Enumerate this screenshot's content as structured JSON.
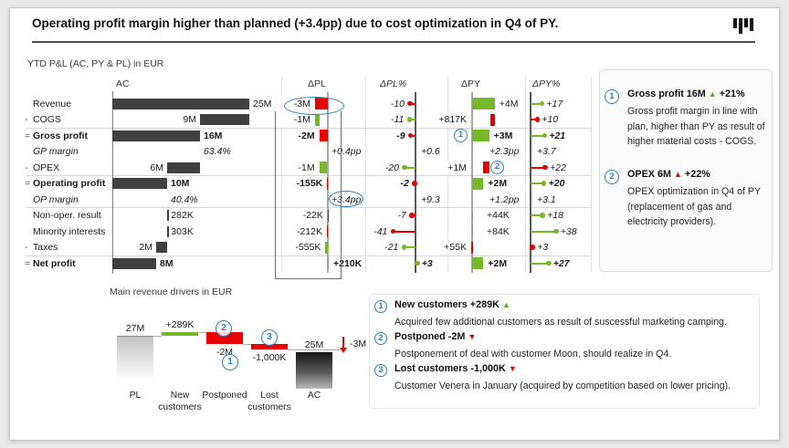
{
  "page": {
    "title": "Operating profit margin higher than planned (+3.4pp) due to cost optimization in Q4 of PY.",
    "logo": "bar-chart-logo"
  },
  "colors": {
    "positive": "#76b82a",
    "negative": "#e60000",
    "bar_neutral": "#404040",
    "accent_blue": "#2f7fc1"
  },
  "chart_data": [
    {
      "type": "table",
      "title": "YTD P&L (AC, PY & PL) in EUR",
      "columns": [
        "AC",
        "ΔPL",
        "ΔPL%",
        "ΔPY",
        "ΔPY%"
      ],
      "rows": [
        {
          "label": "Revenue",
          "prefix": "",
          "bold": false,
          "italic": false,
          "ac": {
            "text": "25M",
            "range": [
              0,
              25
            ],
            "side": "right"
          },
          "dpl": {
            "text": "-3M",
            "range": [
              -3,
              0
            ],
            "good": false
          },
          "dplp": {
            "text": "-10",
            "v": -10,
            "good": false
          },
          "dpy": {
            "text": "+4M",
            "range": [
              0,
              4
            ],
            "good": true
          },
          "dpyp": {
            "text": "+17",
            "v": 17,
            "good": true
          }
        },
        {
          "label": "COGS",
          "prefix": "-",
          "bold": false,
          "italic": false,
          "ac": {
            "text": "9M",
            "range": [
              16,
              25
            ],
            "side": "left"
          },
          "dpl": {
            "text": "-1M",
            "range": [
              -3,
              -2
            ],
            "good": true
          },
          "dplp": {
            "text": "-11",
            "v": -11,
            "good": true
          },
          "dpy": {
            "text": "+817K",
            "range": [
              3.18,
              4
            ],
            "good": false,
            "label": "left"
          },
          "dpyp": {
            "text": "+10",
            "v": 10,
            "good": false
          }
        },
        {
          "label": "Gross profit",
          "prefix": "=",
          "bold": true,
          "italic": false,
          "ac": {
            "text": "16M",
            "range": [
              0,
              16
            ],
            "side": "right"
          },
          "dpl": {
            "text": "-2M",
            "range": [
              -2,
              0
            ],
            "good": false
          },
          "dplp": {
            "text": "-9",
            "v": -9,
            "good": false
          },
          "dpy": {
            "text": "+3M",
            "range": [
              0,
              3
            ],
            "good": true,
            "callout": "1",
            "callout_side": "left"
          },
          "dpyp": {
            "text": "+21",
            "v": 21,
            "good": true
          }
        },
        {
          "label": "GP margin",
          "prefix": "",
          "bold": false,
          "italic": true,
          "ac": {
            "text": "63.4%",
            "align_to_m": 16
          },
          "dpl": {
            "text": "+0.4pp",
            "margin": true
          },
          "dplp": {
            "text": "+0.6",
            "margin": true
          },
          "dpy": {
            "text": "+2.3pp",
            "margin": true
          },
          "dpyp": {
            "text": "+3.7",
            "margin": true
          }
        },
        {
          "label": "OPEX",
          "prefix": "-",
          "bold": false,
          "italic": false,
          "ac": {
            "text": "6M",
            "range": [
              10,
              16
            ],
            "side": "left"
          },
          "dpl": {
            "text": "-1M",
            "range": [
              -2,
              -0.155
            ],
            "good": true
          },
          "dplp": {
            "text": "-20",
            "v": -20,
            "good": true
          },
          "dpy": {
            "text": "+1M",
            "range": [
              2,
              3
            ],
            "good": false,
            "label": "left",
            "callout": "2",
            "callout_side": "right"
          },
          "dpyp": {
            "text": "+22",
            "v": 22,
            "good": false
          }
        },
        {
          "label": "Operating profit",
          "prefix": "=",
          "bold": true,
          "italic": false,
          "ac": {
            "text": "10M",
            "range": [
              0,
              10
            ],
            "side": "right"
          },
          "dpl": {
            "text": "-155K",
            "range": [
              -0.155,
              0
            ],
            "good": false
          },
          "dplp": {
            "text": "-2",
            "v": -2,
            "good": false
          },
          "dpy": {
            "text": "+2M",
            "range": [
              0,
              2
            ],
            "good": true
          },
          "dpyp": {
            "text": "+20",
            "v": 20,
            "good": true
          }
        },
        {
          "label": "OP margin",
          "prefix": "",
          "bold": false,
          "italic": true,
          "ac": {
            "text": "40.4%",
            "align_to_m": 10
          },
          "dpl": {
            "text": "+3.4pp",
            "margin": true,
            "highlighted": true
          },
          "dplp": {
            "text": "+9.3",
            "margin": true
          },
          "dpy": {
            "text": "+1.2pp",
            "margin": true
          },
          "dpyp": {
            "text": "+3.1",
            "margin": true
          }
        },
        {
          "label": "Non-oper. result",
          "prefix": "",
          "bold": false,
          "italic": false,
          "ac": {
            "text": "282K",
            "range": [
              10,
              10.05
            ],
            "side": "right"
          },
          "dpl": {
            "text": "-22K",
            "range": [
              -0.022,
              0
            ],
            "good": false
          },
          "dplp": {
            "text": "-7",
            "v": -7,
            "good": false
          },
          "dpy": {
            "text": "+44K",
            "range": [
              0,
              0.07
            ],
            "good": true
          },
          "dpyp": {
            "text": "+18",
            "v": 18,
            "good": true
          }
        },
        {
          "label": "Minority interests",
          "prefix": "",
          "bold": false,
          "italic": false,
          "ac": {
            "text": "303K",
            "range": [
              10,
              10.05
            ],
            "side": "right"
          },
          "dpl": {
            "text": "-212K",
            "range": [
              -0.212,
              0
            ],
            "good": false
          },
          "dplp": {
            "text": "-41",
            "v": -41,
            "good": false
          },
          "dpy": {
            "text": "+84K",
            "range": [
              0,
              0.13
            ],
            "good": true
          },
          "dpyp": {
            "text": "+38",
            "v": 38,
            "good": true
          }
        },
        {
          "label": "Taxes",
          "prefix": "-",
          "bold": false,
          "italic": false,
          "ac": {
            "text": "2M",
            "range": [
              8,
              10
            ],
            "side": "left"
          },
          "dpl": {
            "text": "-555K",
            "range": [
              -0.555,
              0
            ],
            "good": true
          },
          "dplp": {
            "text": "-21",
            "v": -21,
            "good": true
          },
          "dpy": {
            "text": "+55K",
            "range": [
              -0.09,
              0
            ],
            "good": false,
            "label": "left"
          },
          "dpyp": {
            "text": "+3",
            "v": 3,
            "good": false
          }
        },
        {
          "label": "Net profit",
          "prefix": "=",
          "bold": true,
          "italic": false,
          "ac": {
            "text": "8M",
            "range": [
              0,
              8
            ],
            "side": "right"
          },
          "dpl": {
            "text": "+210K",
            "range": [
              0,
              0.21
            ],
            "good": true
          },
          "dplp": {
            "text": "+3",
            "v": 3,
            "good": true
          },
          "dpy": {
            "text": "+2M",
            "range": [
              0,
              2
            ],
            "good": true
          },
          "dpyp": {
            "text": "+27",
            "v": 27,
            "good": true
          }
        }
      ]
    },
    {
      "type": "waterfall",
      "title": "Main revenue drivers in EUR",
      "categories": [
        "PL",
        "New\ncustomers",
        "Postponed",
        "Lost\ncustomers",
        "AC"
      ],
      "labels": [
        "27M",
        "+289K",
        "-2M",
        "-1,000K",
        "25M"
      ],
      "values_m": [
        27,
        0.289,
        -2,
        -1,
        25
      ],
      "kinds": [
        "base",
        "inc",
        "dec",
        "dec",
        "result"
      ],
      "variance": {
        "label": "-3M"
      }
    }
  ],
  "notes_top": [
    {
      "num": "1",
      "title": "Gross profit 16M",
      "arrow": "▲",
      "arrow_color": "green",
      "suffix": "+21%",
      "body": "Gross profit margin in line with plan, higher than PY as result of higher material costs - COGS."
    },
    {
      "num": "2",
      "title": "OPEX 6M",
      "arrow": "▲",
      "arrow_color": "red",
      "suffix": "+22%",
      "body": "OPEX optimization in Q4 of PY (replacement of gas and electricity providers)."
    }
  ],
  "notes_bottom": [
    {
      "num": "1",
      "title": "New customers +289K",
      "arrow": "▲",
      "arrow_color": "green",
      "suffix": "",
      "body": "Acquired few additional customers as result of suscessful marketing camping."
    },
    {
      "num": "2",
      "title": "Postponed -2M",
      "arrow": "▼",
      "arrow_color": "red",
      "suffix": "",
      "body": "Postponement of deal with customer Moon, should realize in Q4."
    },
    {
      "num": "3",
      "title": "Lost customers -1,000K",
      "arrow": "▼",
      "arrow_color": "red",
      "suffix": "",
      "body": "Customer Venera in January (acquired by competition based on lower pricing)."
    }
  ]
}
